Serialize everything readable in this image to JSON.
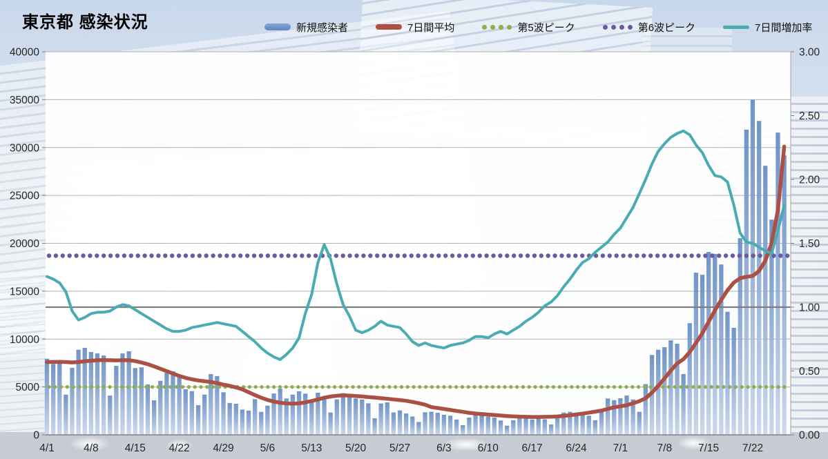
{
  "title": "東京都 感染状況",
  "colors": {
    "bar_top": "#5e86c0",
    "bar_mid": "#86a4d2",
    "bar_bottom": "#c6d3ea",
    "avg_line": "#aa5045",
    "wave5": "#8fae4e",
    "wave6": "#6a5b9e",
    "rate_line": "#4aacb2",
    "grid": "#b0b0b0",
    "grid_dark": "#7f7f7f",
    "axis_text": "#262626"
  },
  "legend": [
    {
      "label": "新規感染者",
      "swatch": "bar"
    },
    {
      "label": "7日間平均",
      "swatch": "thick"
    },
    {
      "label": "第5波ピーク",
      "swatch": "dots",
      "color": "#8fae4e"
    },
    {
      "label": "第6波ピーク",
      "swatch": "dots",
      "color": "#6a5b9e"
    },
    {
      "label": "7日間増加率",
      "swatch": "line",
      "color": "#4aacb2"
    }
  ],
  "chart_data": {
    "type": "combo bar+line, dual axis",
    "x_axis": {
      "start_date": "4/1",
      "end_date": "7/27",
      "n_points": 118,
      "unit": "day",
      "tick_labels": [
        "4/1",
        "4/8",
        "4/15",
        "4/22",
        "4/29",
        "5/6",
        "5/13",
        "5/20",
        "5/27",
        "6/3",
        "6/10",
        "6/17",
        "6/24",
        "7/1",
        "7/8",
        "7/15",
        "7/22"
      ]
    },
    "left_axis": {
      "min": 0,
      "max": 40000,
      "step": 5000,
      "tick_labels": [
        "0",
        "5000",
        "10000",
        "15000",
        "20000",
        "25000",
        "30000",
        "35000",
        "40000"
      ]
    },
    "right_axis": {
      "min": 0,
      "max": 3,
      "step": 0.5,
      "tick_labels": [
        "0.00",
        "0.50",
        "1.00",
        "1.50",
        "2.00",
        "2.50",
        "3.00"
      ],
      "reference_line": 1.0
    },
    "series": [
      {
        "name": "新規感染者",
        "type": "bar",
        "axis": "left",
        "values": [
          7950,
          7400,
          7440,
          4200,
          7000,
          8890,
          9080,
          8650,
          8520,
          8280,
          4100,
          7200,
          8500,
          8720,
          6980,
          7050,
          5270,
          3600,
          5640,
          6480,
          6630,
          6150,
          4760,
          4560,
          3100,
          4200,
          6350,
          6130,
          4450,
          3330,
          3240,
          2640,
          2520,
          3720,
          2400,
          3050,
          4320,
          4820,
          3800,
          4200,
          4550,
          4300,
          3650,
          4400,
          4000,
          2330,
          3700,
          4350,
          4180,
          3800,
          3690,
          3290,
          1740,
          3270,
          3390,
          2340,
          2550,
          2230,
          1920,
          1340,
          2360,
          2415,
          2300,
          2100,
          2000,
          1600,
          1010,
          1800,
          2300,
          2000,
          1900,
          1800,
          1500,
          960,
          1530,
          2015,
          1820,
          1600,
          1700,
          1620,
          1080,
          1960,
          2330,
          2410,
          2180,
          2160,
          2000,
          1520,
          2510,
          3800,
          3620,
          3820,
          4100,
          3700,
          2400,
          5300,
          8340,
          8880,
          9150,
          9870,
          9510,
          6350,
          11660,
          16930,
          16710,
          19090,
          18900,
          17790,
          12850,
          11170,
          20530,
          31870,
          34990,
          32780,
          28100,
          22470,
          31560,
          29180
        ]
      },
      {
        "name": "7日間平均",
        "type": "line",
        "axis": "left",
        "values": [
          7600,
          7610,
          7620,
          7600,
          7560,
          7600,
          7680,
          7740,
          7790,
          7800,
          7790,
          7780,
          7790,
          7800,
          7700,
          7550,
          7380,
          7150,
          6900,
          6650,
          6400,
          6150,
          5950,
          5800,
          5680,
          5600,
          5520,
          5400,
          5250,
          5120,
          4950,
          4750,
          4450,
          4150,
          3880,
          3650,
          3480,
          3350,
          3290,
          3250,
          3290,
          3390,
          3540,
          3700,
          3880,
          4000,
          4080,
          4120,
          4100,
          4060,
          4010,
          3950,
          3890,
          3830,
          3770,
          3700,
          3630,
          3550,
          3440,
          3300,
          3150,
          2900,
          2800,
          2700,
          2600,
          2500,
          2400,
          2300,
          2230,
          2170,
          2120,
          2070,
          2020,
          1970,
          1930,
          1900,
          1880,
          1870,
          1870,
          1880,
          1890,
          1920,
          1980,
          2050,
          2130,
          2220,
          2320,
          2420,
          2540,
          2700,
          2880,
          2980,
          3100,
          3300,
          3520,
          3820,
          4400,
          5100,
          5900,
          6700,
          7450,
          7900,
          8650,
          9600,
          10600,
          11800,
          13000,
          14100,
          15100,
          15900,
          16350,
          16500,
          16600,
          17100,
          18200,
          20000,
          23500,
          30100
        ]
      },
      {
        "name": "第5波ピーク",
        "type": "hline",
        "axis": "left",
        "value": 5000
      },
      {
        "name": "第6波ピーク",
        "type": "hline",
        "axis": "left",
        "value": 18700
      },
      {
        "name": "7日間増加率",
        "type": "line",
        "axis": "right",
        "values": [
          1.24,
          1.22,
          1.19,
          1.12,
          0.97,
          0.9,
          0.92,
          0.95,
          0.96,
          0.96,
          0.97,
          1.0,
          1.02,
          1.01,
          0.98,
          0.95,
          0.92,
          0.89,
          0.86,
          0.83,
          0.81,
          0.81,
          0.82,
          0.84,
          0.85,
          0.86,
          0.87,
          0.88,
          0.87,
          0.86,
          0.85,
          0.81,
          0.77,
          0.73,
          0.68,
          0.64,
          0.61,
          0.59,
          0.63,
          0.68,
          0.76,
          0.95,
          1.1,
          1.35,
          1.49,
          1.38,
          1.18,
          1.02,
          0.93,
          0.82,
          0.8,
          0.82,
          0.85,
          0.89,
          0.86,
          0.85,
          0.84,
          0.79,
          0.73,
          0.7,
          0.72,
          0.7,
          0.69,
          0.68,
          0.7,
          0.71,
          0.72,
          0.74,
          0.77,
          0.77,
          0.76,
          0.79,
          0.81,
          0.79,
          0.82,
          0.85,
          0.89,
          0.92,
          0.96,
          1.01,
          1.04,
          1.09,
          1.16,
          1.22,
          1.29,
          1.35,
          1.38,
          1.43,
          1.47,
          1.51,
          1.57,
          1.62,
          1.7,
          1.78,
          1.89,
          2.0,
          2.12,
          2.22,
          2.28,
          2.33,
          2.36,
          2.38,
          2.35,
          2.27,
          2.21,
          2.11,
          2.03,
          2.02,
          1.98,
          1.8,
          1.58,
          1.51,
          1.5,
          1.47,
          1.44,
          1.42,
          1.6,
          1.8
        ]
      }
    ]
  }
}
